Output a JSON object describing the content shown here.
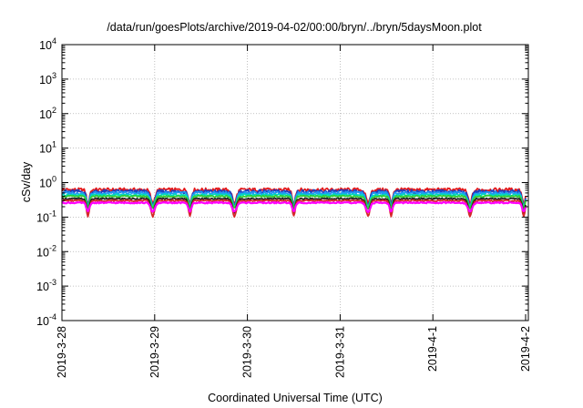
{
  "chart_data": {
    "type": "line",
    "title": "/data/run/goesPlots/archive/2019-04-02/00:00/bryn/../bryn/5daysMoon.plot",
    "xlabel": "Coordinated Universal Time (UTC)",
    "ylabel": "cSv/day",
    "yscale": "log",
    "ylim": [
      0.0001,
      10000
    ],
    "xlim": [
      "2019-03-28",
      "2019-04-02"
    ],
    "grid": true,
    "x_ticks": [
      "2019-3-28",
      "2019-3-29",
      "2019-3-30",
      "2019-3-31",
      "2019-4-1",
      "2019-4-2"
    ],
    "y_ticks": [
      {
        "base": "10",
        "exp": "-4",
        "value": 0.0001
      },
      {
        "base": "10",
        "exp": "-3",
        "value": 0.001
      },
      {
        "base": "10",
        "exp": "-2",
        "value": 0.01
      },
      {
        "base": "10",
        "exp": "-1",
        "value": 0.1
      },
      {
        "base": "10",
        "exp": "0",
        "value": 1
      },
      {
        "base": "10",
        "exp": "1",
        "value": 10
      },
      {
        "base": "10",
        "exp": "2",
        "value": 100
      },
      {
        "base": "10",
        "exp": "3",
        "value": 1000
      },
      {
        "base": "10",
        "exp": "4",
        "value": 10000
      }
    ],
    "dips_days": [
      0.28,
      0.98,
      1.38,
      1.86,
      2.5,
      3.3,
      3.55,
      4.4,
      4.98
    ],
    "series": [
      {
        "color": "#e41a1c",
        "base": 0.62,
        "dip": 0.6,
        "noise": 0.12
      },
      {
        "color": "#1f3fbf",
        "base": 0.55,
        "dip": 0.6,
        "noise": 0.12
      },
      {
        "color": "#2196f3",
        "base": 0.5,
        "dip": 0.6,
        "noise": 0.1
      },
      {
        "color": "#00d8c0",
        "base": 0.44,
        "dip": 0.55,
        "noise": 0.06
      },
      {
        "color": "#33cc33",
        "base": 0.4,
        "dip": 0.55,
        "noise": 0.05
      },
      {
        "color": "#222222",
        "base": 0.34,
        "dip": 0.6,
        "noise": 0.05
      },
      {
        "color": "#d62728",
        "base": 0.3,
        "dip": 0.65,
        "noise": 0.05
      },
      {
        "color": "#ff00ff",
        "base": 0.26,
        "dip": 0.45,
        "noise": 0.04
      }
    ]
  }
}
